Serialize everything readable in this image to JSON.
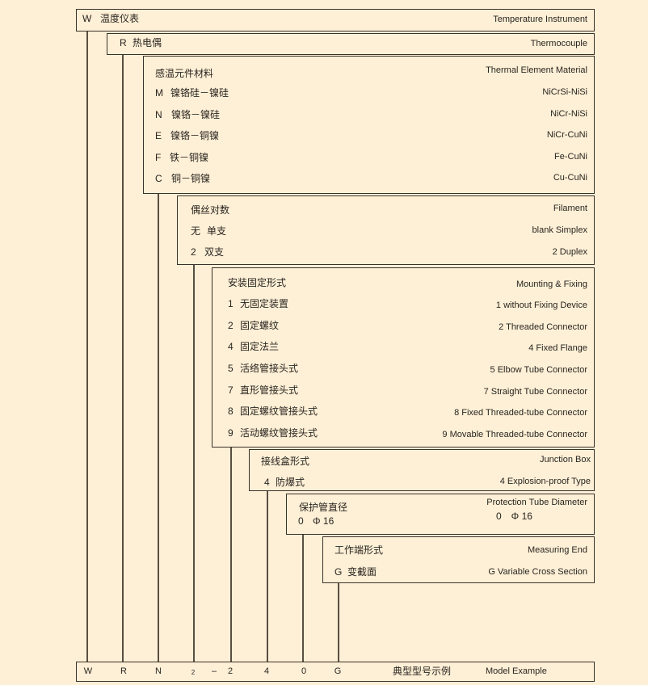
{
  "sections": [
    {
      "code": "W",
      "zh": "温度仪表",
      "en": "Temperature Instrument"
    },
    {
      "code": "R",
      "zh": "热电偶",
      "en": "Thermocouple"
    },
    {
      "title_zh": "感温元件材料",
      "title_en": "Thermal Element Material",
      "items": [
        {
          "code": "M",
          "zh": "镍铬硅－镍硅",
          "en": "NiCrSi-NiSi"
        },
        {
          "code": "N",
          "zh": "镍铬－镍硅",
          "en": "NiCr-NiSi"
        },
        {
          "code": "E",
          "zh": "镍铬－铜镍",
          "en": "NiCr-CuNi"
        },
        {
          "code": "F",
          "zh": "铁－铜镍",
          "en": "Fe-CuNi"
        },
        {
          "code": "C",
          "zh": "铜－铜镍",
          "en": "Cu-CuNi"
        }
      ]
    },
    {
      "title_zh": "偶丝对数",
      "title_en": "Filament",
      "items": [
        {
          "code": "无",
          "zh": "单支",
          "en": "blank Simplex"
        },
        {
          "code": "2",
          "zh": "双支",
          "en": "2 Duplex"
        }
      ]
    },
    {
      "title_zh": "安装固定形式",
      "title_en": "Mounting & Fixing",
      "items": [
        {
          "code": "1",
          "zh": "无固定装置",
          "en": "1 without Fixing Device"
        },
        {
          "code": "2",
          "zh": "固定螺纹",
          "en": "2 Threaded Connector"
        },
        {
          "code": "4",
          "zh": "固定法兰",
          "en": "4 Fixed Flange"
        },
        {
          "code": "5",
          "zh": "活络管接头式",
          "en": "5 Elbow Tube Connector"
        },
        {
          "code": "7",
          "zh": "直形管接头式",
          "en": "7 Straight Tube Connector"
        },
        {
          "code": "8",
          "zh": "固定螺纹管接头式",
          "en": "8 Fixed Threaded-tube Connector"
        },
        {
          "code": "9",
          "zh": "活动螺纹管接头式",
          "en": "9 Movable Threaded-tube Connector"
        }
      ]
    },
    {
      "title_zh": "接线盒形式",
      "title_en": "Junction Box",
      "items": [
        {
          "code": "4",
          "zh": "防爆式",
          "en": "4 Explosion-proof Type"
        }
      ]
    },
    {
      "title_zh": "保护管直径",
      "title_en": "Protection Tube Diameter",
      "items": [
        {
          "code": "0",
          "zh": "Φ 16",
          "en": "0　Φ 16"
        }
      ]
    },
    {
      "title_zh": "工作端形式",
      "title_en": "Measuring End",
      "items": [
        {
          "code": "G",
          "zh": "变截面",
          "en": "G Variable Cross Section"
        }
      ]
    }
  ],
  "example": {
    "codes": [
      "W",
      "R",
      "N",
      "2",
      "–",
      "2",
      "4",
      "0",
      "G"
    ],
    "label_zh": "典型型号示例",
    "label_en": "Model Example"
  }
}
